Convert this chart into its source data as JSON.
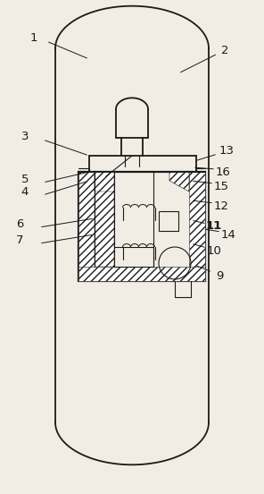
{
  "bg_color": "#f2ede4",
  "line_color": "#1a1a1a",
  "fig_width": 2.96,
  "fig_height": 5.52,
  "dpi": 100
}
